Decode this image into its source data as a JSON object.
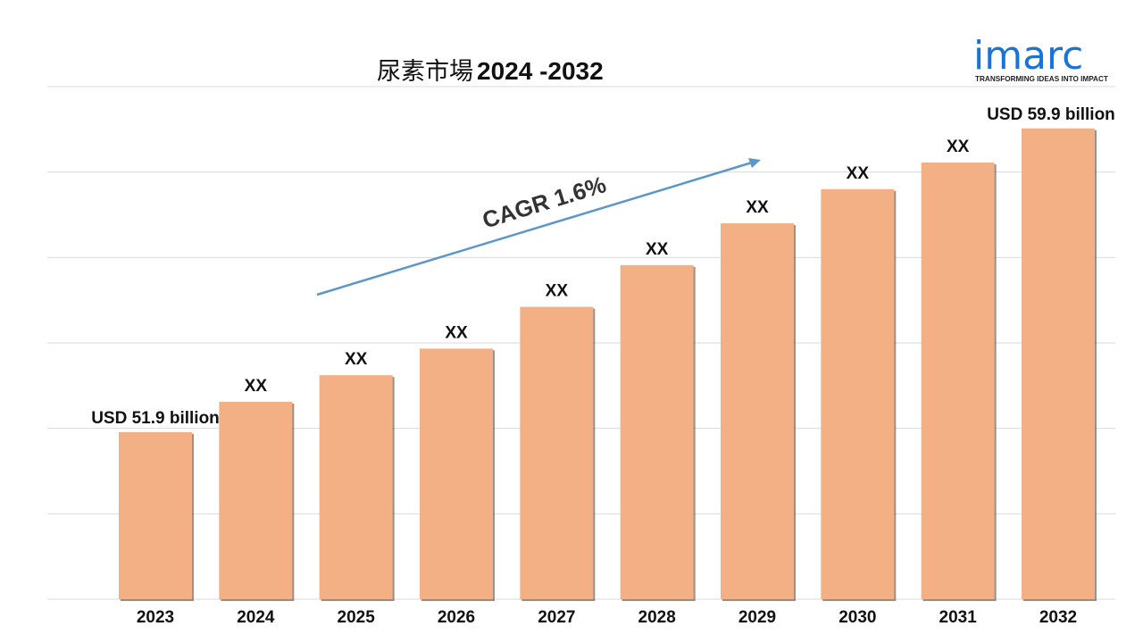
{
  "chart_data": {
    "type": "bar",
    "title": "尿素市場",
    "title_years": "2024 -2032",
    "categories": [
      "2023",
      "2024",
      "2025",
      "2026",
      "2027",
      "2028",
      "2029",
      "2030",
      "2031",
      "2032"
    ],
    "values": [
      51.9,
      52.7,
      53.4,
      54.1,
      55.2,
      56.3,
      57.4,
      58.3,
      59.0,
      59.9
    ],
    "data_labels": [
      "USD 51.9 billion",
      "XX",
      "XX",
      "XX",
      "XX",
      "XX",
      "XX",
      "XX",
      "XX",
      "USD 59.9 billion"
    ],
    "annotation": "CAGR 1.6%",
    "ylim": [
      47.5,
      61.0
    ],
    "grid": true,
    "legend": "none",
    "bar_color": "#f2b084",
    "grid_color": "#d9d9d9",
    "arrow_color": "#5b97c9"
  },
  "logo": {
    "word": "imarc",
    "tagline": "TRANSFORMING IDEAS INTO IMPACT",
    "color": "#1a73d9"
  }
}
